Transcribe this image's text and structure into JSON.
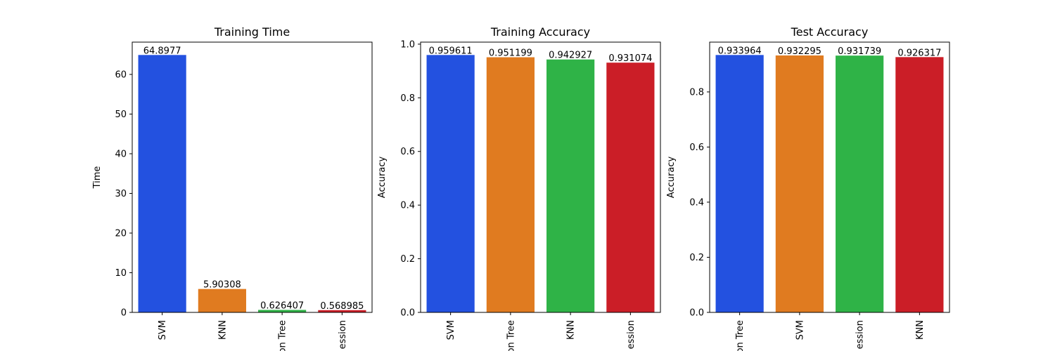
{
  "colors": {
    "blue": "#2351e0",
    "orange": "#e07b20",
    "green": "#2fb347",
    "red": "#cb1e27"
  },
  "chart_data": [
    {
      "type": "bar",
      "title": "Training Time",
      "ylabel": "Time",
      "categories": [
        "SVM",
        "KNN",
        "on Tree",
        "ession"
      ],
      "values": [
        64.8977,
        5.90308,
        0.626407,
        0.568985
      ],
      "value_labels": [
        "64.8977",
        "5.90308",
        "0.626407",
        "0.568985"
      ],
      "bar_colors": [
        "#2351e0",
        "#e07b20",
        "#2fb347",
        "#cb1e27"
      ],
      "ylim": [
        0,
        68.14
      ],
      "yticks": [
        0,
        10,
        20,
        30,
        40,
        50,
        60
      ],
      "ytick_labels": [
        "0",
        "10",
        "20",
        "30",
        "40",
        "50",
        "60"
      ]
    },
    {
      "type": "bar",
      "title": "Training Accuracy",
      "ylabel": "Accuracy",
      "categories": [
        "SVM",
        "on Tree",
        "KNN",
        "ession"
      ],
      "values": [
        0.959611,
        0.951199,
        0.942927,
        0.931074
      ],
      "value_labels": [
        "0.959611",
        "0.951199",
        "0.942927",
        "0.931074"
      ],
      "bar_colors": [
        "#2351e0",
        "#e07b20",
        "#2fb347",
        "#cb1e27"
      ],
      "ylim": [
        0,
        1.0076
      ],
      "yticks": [
        0,
        0.2,
        0.4,
        0.6,
        0.8,
        1.0
      ],
      "ytick_labels": [
        "0.0",
        "0.2",
        "0.4",
        "0.6",
        "0.8",
        "1.0"
      ]
    },
    {
      "type": "bar",
      "title": "Test Accuracy",
      "ylabel": "Accuracy",
      "categories": [
        "on Tree",
        "SVM",
        "ession",
        "KNN"
      ],
      "values": [
        0.933964,
        0.932295,
        0.931739,
        0.926317
      ],
      "value_labels": [
        "0.933964",
        "0.932295",
        "0.931739",
        "0.926317"
      ],
      "bar_colors": [
        "#2351e0",
        "#e07b20",
        "#2fb347",
        "#cb1e27"
      ],
      "ylim": [
        0,
        0.98066
      ],
      "yticks": [
        0,
        0.2,
        0.4,
        0.6,
        0.8
      ],
      "ytick_labels": [
        "0.0",
        "0.2",
        "0.4",
        "0.6",
        "0.8"
      ]
    }
  ]
}
